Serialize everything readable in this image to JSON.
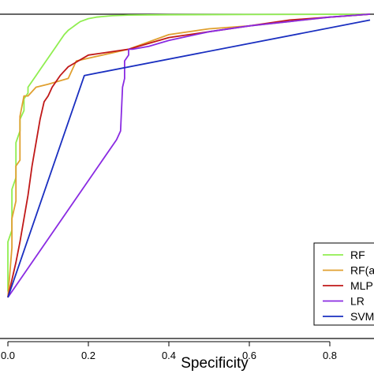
{
  "chart_data": {
    "type": "line",
    "xlabel": "Specificity",
    "ylabel": "",
    "xlim": [
      0,
      0.9
    ],
    "ylim": [
      0,
      1
    ],
    "x_ticks": [
      0.0,
      0.2,
      0.4,
      0.6,
      0.8
    ],
    "x_tick_labels": [
      "0.0",
      "0.2",
      "0.4",
      "0.6",
      "0.8"
    ],
    "grid": false,
    "legend_position": "bottom-right",
    "series": [
      {
        "name": "RF",
        "color": "#90ee50",
        "x": [
          0.0,
          0.0,
          0.01,
          0.01,
          0.02,
          0.02,
          0.03,
          0.03,
          0.04,
          0.04,
          0.05,
          0.05,
          0.06,
          0.07,
          0.08,
          0.09,
          0.1,
          0.11,
          0.12,
          0.13,
          0.14,
          0.15,
          0.16,
          0.17,
          0.18,
          0.2,
          0.22,
          0.26,
          0.3,
          0.4,
          0.6,
          0.9
        ],
        "y": [
          0.05,
          0.22,
          0.26,
          0.4,
          0.44,
          0.56,
          0.6,
          0.64,
          0.67,
          0.71,
          0.73,
          0.75,
          0.77,
          0.79,
          0.81,
          0.83,
          0.85,
          0.87,
          0.89,
          0.91,
          0.93,
          0.945,
          0.955,
          0.965,
          0.975,
          0.985,
          0.99,
          0.995,
          0.997,
          0.998,
          0.999,
          1.0
        ]
      },
      {
        "name": "RF(a",
        "color": "#e0a030",
        "x": [
          0.0,
          0.01,
          0.01,
          0.02,
          0.02,
          0.03,
          0.03,
          0.04,
          0.05,
          0.07,
          0.1,
          0.15,
          0.16,
          0.17,
          0.3,
          0.4,
          0.5,
          0.6,
          0.7,
          0.8,
          0.9
        ],
        "y": [
          0.03,
          0.2,
          0.3,
          0.36,
          0.48,
          0.5,
          0.65,
          0.72,
          0.72,
          0.75,
          0.76,
          0.78,
          0.81,
          0.84,
          0.88,
          0.93,
          0.95,
          0.96,
          0.975,
          0.99,
          1.0
        ]
      },
      {
        "name": "MLP",
        "color": "#c01818",
        "x": [
          0.0,
          0.02,
          0.03,
          0.04,
          0.05,
          0.06,
          0.07,
          0.08,
          0.09,
          0.1,
          0.11,
          0.13,
          0.15,
          0.2,
          0.25,
          0.3,
          0.4,
          0.5,
          0.6,
          0.7,
          0.8,
          0.9
        ],
        "y": [
          0.03,
          0.15,
          0.22,
          0.3,
          0.38,
          0.48,
          0.56,
          0.64,
          0.7,
          0.72,
          0.75,
          0.79,
          0.82,
          0.86,
          0.87,
          0.88,
          0.92,
          0.94,
          0.96,
          0.98,
          0.99,
          1.0
        ]
      },
      {
        "name": "LR",
        "color": "#8a2be2",
        "x": [
          0.0,
          0.27,
          0.28,
          0.285,
          0.29,
          0.29,
          0.3,
          0.3,
          0.31,
          0.35,
          0.4,
          0.5,
          0.6,
          0.7,
          0.8,
          0.9
        ],
        "y": [
          0.03,
          0.57,
          0.6,
          0.75,
          0.78,
          0.84,
          0.86,
          0.88,
          0.88,
          0.89,
          0.91,
          0.94,
          0.96,
          0.975,
          0.99,
          1.0
        ]
      },
      {
        "name": "SVM",
        "color": "#1a2fc0",
        "x": [
          0.0,
          0.19,
          0.9
        ],
        "y": [
          0.03,
          0.79,
          0.98
        ]
      }
    ]
  }
}
